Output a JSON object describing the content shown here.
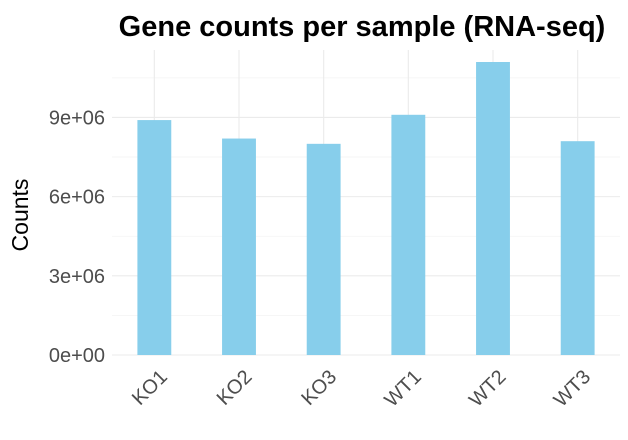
{
  "chart_data": {
    "type": "bar",
    "title": "Gene counts per sample (RNA-seq)",
    "xlabel": "",
    "ylabel": "Counts",
    "categories": [
      "KO1",
      "KO2",
      "KO3",
      "WT1",
      "WT2",
      "WT3"
    ],
    "values": [
      8900000,
      8200000,
      8000000,
      9100000,
      11100000,
      8100000
    ],
    "ylim": [
      0,
      11100000
    ],
    "yticks": [
      0,
      3000000,
      6000000,
      9000000
    ],
    "ytick_labels": [
      "0e+00",
      "3e+06",
      "6e+06",
      "9e+06"
    ],
    "bar_color": "#87CEEB",
    "grid": true,
    "legend": "none"
  }
}
